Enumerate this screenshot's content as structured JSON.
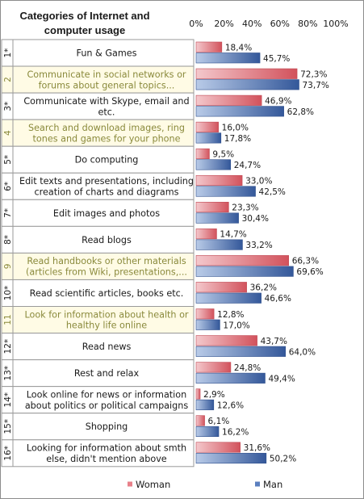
{
  "chart_data": {
    "type": "bar",
    "orientation": "horizontal",
    "header": [
      "Categories of Internet and",
      "computer usage"
    ],
    "xlim": [
      0,
      100
    ],
    "x_ticks": [
      "0%",
      "20%",
      "40%",
      "60%",
      "80%",
      "100%"
    ],
    "x_tick_values": [
      0,
      20,
      40,
      60,
      80,
      100
    ],
    "row_numbers": [
      "1*",
      "2",
      "3*",
      "4",
      "5*",
      "6*",
      "7*",
      "8*",
      "9",
      "10*",
      "11",
      "12*",
      "13*",
      "14*",
      "15*",
      "16*"
    ],
    "categories": [
      [
        "Fun & Games"
      ],
      [
        "Communicate in social networks or",
        "forums about general topics..."
      ],
      [
        "Communicate with Skype, email and",
        "etc."
      ],
      [
        "Search and download images, ring",
        "tones and games for your phone"
      ],
      [
        "Do computing"
      ],
      [
        "Edit texts and presentations, including",
        "creation of charts and diagrams"
      ],
      [
        "Edit images and photos"
      ],
      [
        "Read blogs"
      ],
      [
        "Read handbooks or other materials",
        "(articles from Wiki, presentations,..."
      ],
      [
        "Read scientific articles, books etc."
      ],
      [
        "Look for information about health or",
        "healthy life online"
      ],
      [
        "Read news"
      ],
      [
        "Rest and relax"
      ],
      [
        "Look online for news or information",
        "about politics or political campaigns"
      ],
      [
        "Shopping"
      ],
      [
        "Looking for information about smth",
        "else, didn't mention above"
      ]
    ],
    "highlighted": [
      false,
      true,
      false,
      true,
      false,
      false,
      false,
      false,
      true,
      false,
      true,
      false,
      false,
      false,
      false,
      false
    ],
    "series": [
      {
        "name": "Woman",
        "color": "#e8808a",
        "values": [
          18.4,
          72.3,
          46.9,
          16.0,
          9.5,
          33.0,
          23.3,
          14.7,
          66.3,
          36.2,
          12.8,
          43.7,
          24.8,
          2.9,
          6.1,
          31.6
        ],
        "labels": [
          "18,4%",
          "72,3%",
          "46,9%",
          "16,0%",
          "9,5%",
          "33,0%",
          "23,3%",
          "14,7%",
          "66,3%",
          "36,2%",
          "12,8%",
          "43,7%",
          "24,8%",
          "2,9%",
          "6,1%",
          "31,6%"
        ]
      },
      {
        "name": "Man",
        "color": "#5b7fbf",
        "values": [
          45.7,
          73.7,
          62.8,
          17.8,
          24.7,
          42.5,
          30.4,
          33.2,
          69.6,
          46.6,
          17.0,
          64.0,
          49.4,
          12.6,
          16.2,
          50.2
        ],
        "labels": [
          "45,7%",
          "73,7%",
          "62,8%",
          "17,8%",
          "24,7%",
          "42,5%",
          "30,4%",
          "33,2%",
          "69,6%",
          "46,6%",
          "17,0%",
          "64,0%",
          "49,4%",
          "12,6%",
          "16,2%",
          "50,2%"
        ]
      }
    ],
    "legend": {
      "position": "bottom"
    },
    "grid": false,
    "colors": {
      "highlight_bg": "#fffbe5",
      "highlight_text": "#8a8a3c",
      "row_border": "#9a9a9a"
    }
  }
}
